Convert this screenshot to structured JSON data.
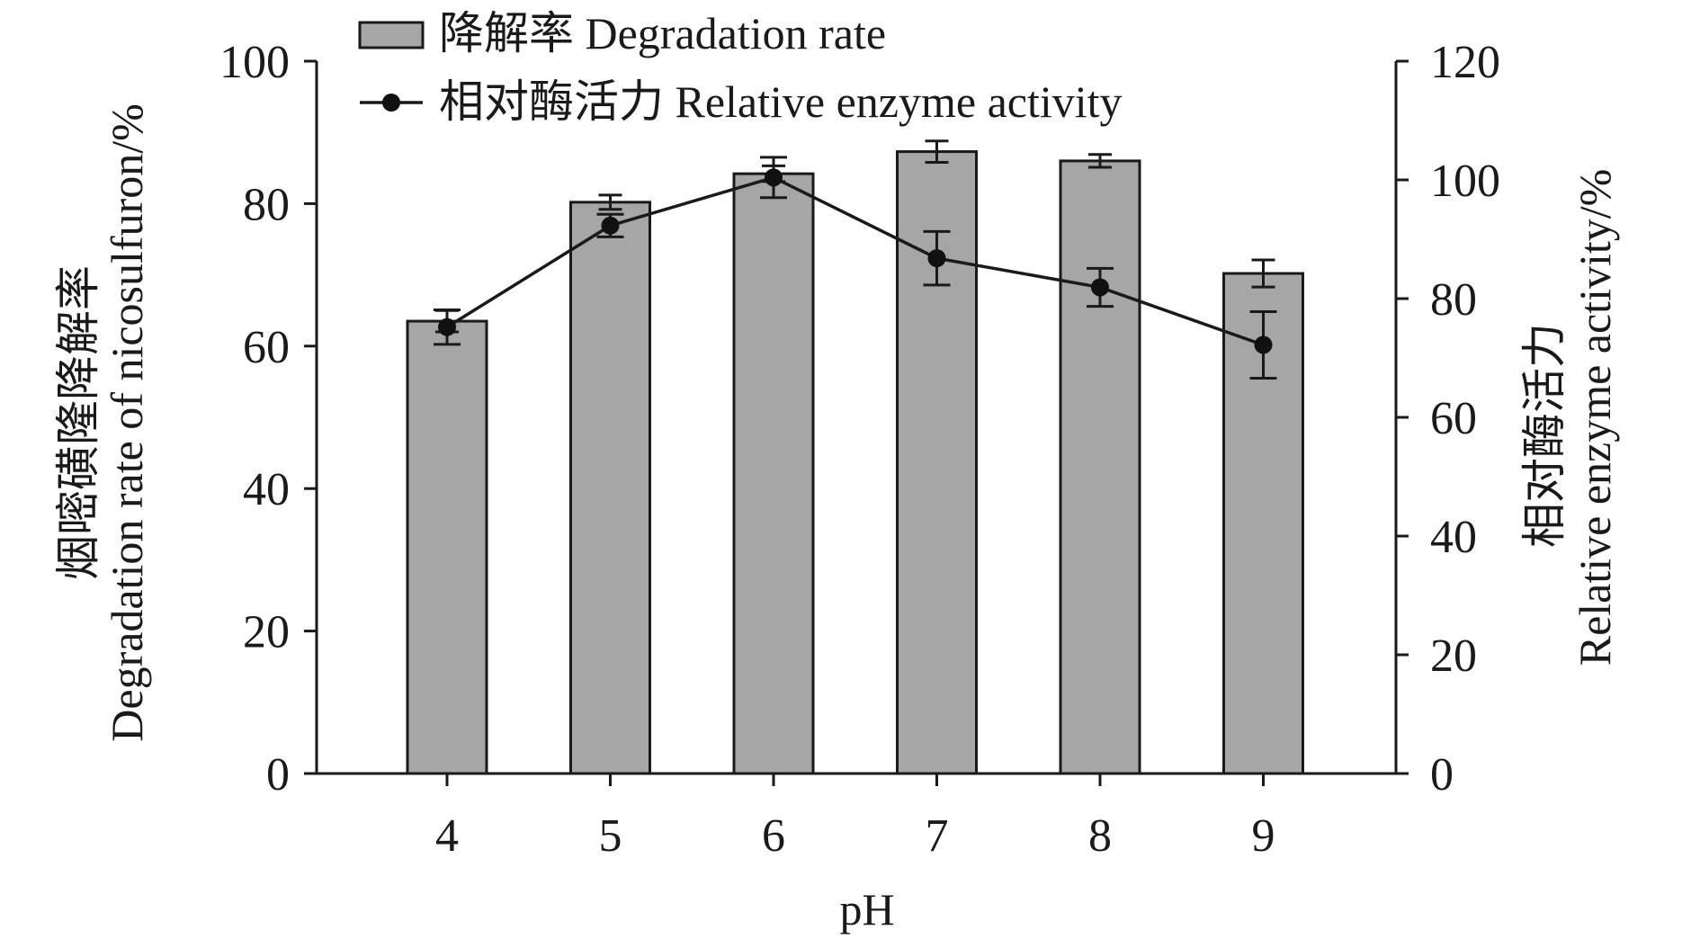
{
  "chart_data": {
    "type": "bar",
    "categories": [
      "4",
      "5",
      "6",
      "7",
      "8",
      "9"
    ],
    "xlabel": "pH",
    "y_left": {
      "label_lines": [
        "烟嘧磺隆降解率",
        "Degradation rate of nicosulfuron/%"
      ],
      "range": [
        0,
        100
      ],
      "ticks": [
        0,
        20,
        40,
        60,
        80,
        100
      ],
      "tick_labels": [
        "0",
        "20",
        "40",
        "60",
        "80",
        "100"
      ]
    },
    "y_right": {
      "label_lines": [
        "相对酶活力",
        "Relative enzyme activity/%"
      ],
      "range": [
        0,
        120
      ],
      "ticks": [
        0,
        20,
        40,
        60,
        80,
        100,
        120
      ],
      "tick_labels": [
        "0",
        "20",
        "40",
        "60",
        "80",
        "100",
        "120"
      ]
    },
    "series": [
      {
        "name": "降解率 Degradation rate",
        "kind": "bar",
        "axis": "left",
        "values": [
          63.5,
          80.2,
          84.2,
          87.3,
          86.0,
          70.2
        ],
        "errors": [
          1.5,
          1.0,
          1.1,
          1.5,
          0.9,
          1.9
        ],
        "color": "#a6a6a6"
      },
      {
        "name": "相对酶活力 Relative enzyme activity",
        "kind": "line",
        "axis": "right",
        "values": [
          75.2,
          92.3,
          100.4,
          86.8,
          81.9,
          72.2
        ],
        "errors": [
          2.9,
          1.9,
          3.4,
          4.5,
          3.2,
          5.6
        ],
        "color": "#111111"
      }
    ],
    "legend_position": "top-center",
    "grid": false
  }
}
